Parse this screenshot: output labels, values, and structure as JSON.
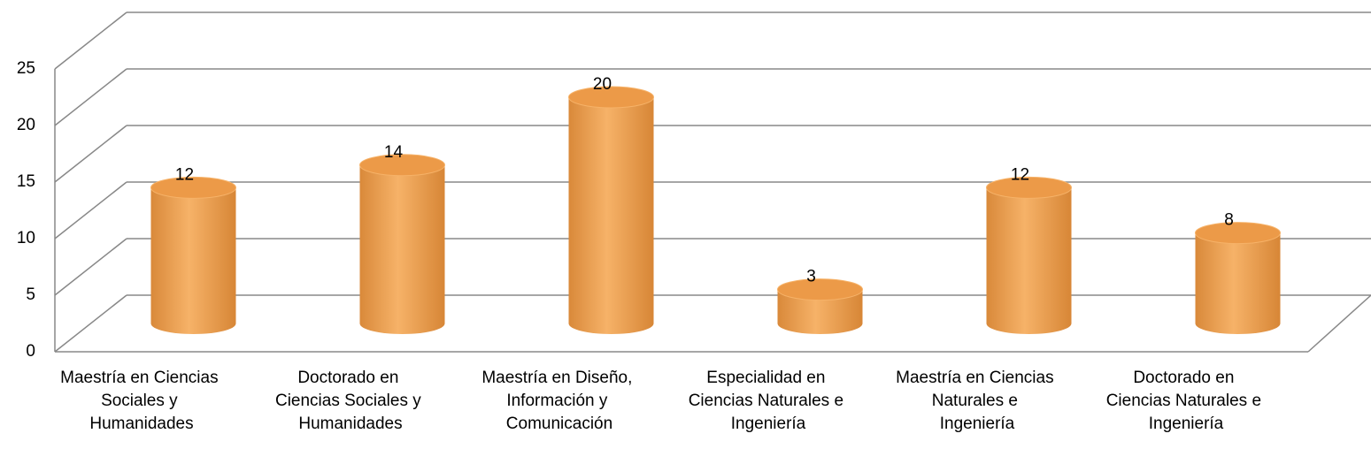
{
  "chart_data": {
    "type": "bar3d",
    "categories": [
      "Maestría en Ciencias Sociales y Humanidades",
      "Doctorado en Ciencias Sociales y Humanidades",
      "Maestría en Diseño, Información y Comunicación",
      "Especialidad en Ciencias Naturales e Ingeniería",
      "Maestría en Ciencias Naturales e Ingeniería",
      "Doctorado en Ciencias Naturales e Ingeniería"
    ],
    "values": [
      12,
      14,
      20,
      3,
      12,
      8
    ],
    "color": "#f0a050",
    "ylim": [
      0,
      25
    ],
    "yticks": [
      0,
      5,
      10,
      15,
      20,
      25
    ],
    "grid": true
  }
}
